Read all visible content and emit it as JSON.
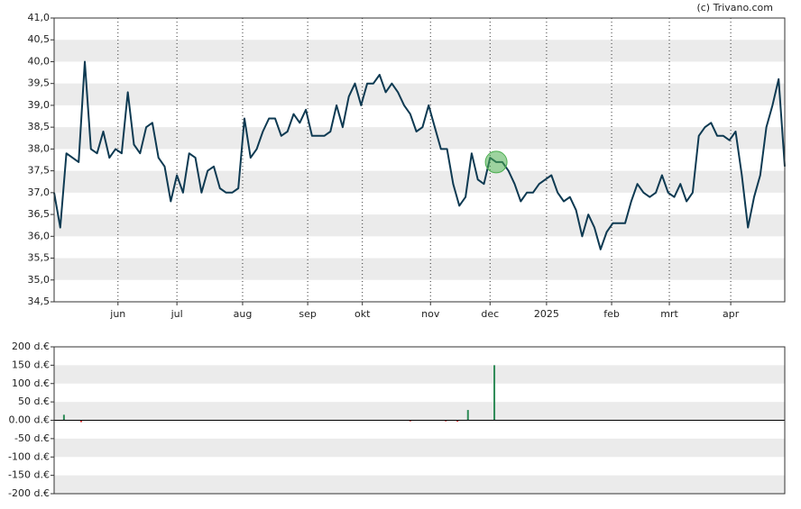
{
  "credit": "(c) Trivano.com",
  "chart_data": [
    {
      "type": "line",
      "color": "#0e3a52",
      "band_color": "#ebebeb",
      "highlight_index": 72,
      "highlight_color": "#4caf50",
      "values": [
        37.0,
        36.2,
        37.9,
        37.8,
        37.7,
        40.0,
        38.0,
        37.9,
        38.4,
        37.8,
        38.0,
        37.9,
        39.3,
        38.1,
        37.9,
        38.5,
        38.6,
        37.8,
        37.6,
        36.8,
        37.4,
        37.0,
        37.9,
        37.8,
        37.0,
        37.5,
        37.6,
        37.1,
        37.0,
        37.0,
        37.1,
        38.7,
        37.8,
        38.0,
        38.4,
        38.7,
        38.7,
        38.3,
        38.4,
        38.8,
        38.6,
        38.9,
        38.3,
        38.3,
        38.3,
        38.4,
        39.0,
        38.5,
        39.2,
        39.5,
        39.0,
        39.5,
        39.5,
        39.7,
        39.3,
        39.5,
        39.3,
        39.0,
        38.8,
        38.4,
        38.5,
        39.0,
        38.5,
        38.0,
        38.0,
        37.2,
        36.7,
        36.9,
        37.9,
        37.3,
        37.2,
        37.8,
        37.7,
        37.7,
        37.5,
        37.2,
        36.8,
        37.0,
        37.0,
        37.2,
        37.3,
        37.4,
        37.0,
        36.8,
        36.9,
        36.6,
        36.0,
        36.5,
        36.2,
        35.7,
        36.1,
        36.3,
        36.3,
        36.3,
        36.8,
        37.2,
        37.0,
        36.9,
        37.0,
        37.4,
        37.0,
        36.9,
        37.2,
        36.8,
        37.0,
        38.3,
        38.5,
        38.6,
        38.3,
        38.3,
        38.2,
        38.4,
        37.4,
        36.2,
        36.9,
        37.4,
        38.5,
        39.0,
        39.6,
        37.6
      ],
      "xlim": [
        0,
        119
      ],
      "xticks": [
        {
          "value": 10.4,
          "label": "jun"
        },
        {
          "value": 20.0,
          "label": "jul"
        },
        {
          "value": 30.7,
          "label": "aug"
        },
        {
          "value": 41.3,
          "label": "sep"
        },
        {
          "value": 50.2,
          "label": "okt"
        },
        {
          "value": 61.3,
          "label": "nov"
        },
        {
          "value": 71.0,
          "label": "dec"
        },
        {
          "value": 80.2,
          "label": "2025"
        },
        {
          "value": 90.8,
          "label": "feb"
        },
        {
          "value": 100.2,
          "label": "mrt"
        },
        {
          "value": 110.2,
          "label": "apr"
        }
      ],
      "ylim": [
        34.5,
        41
      ],
      "yticks": [
        {
          "value": 34.5,
          "label": "34,5"
        },
        {
          "value": 35,
          "label": "35,0"
        },
        {
          "value": 35.5,
          "label": "35,5"
        },
        {
          "value": 36,
          "label": "36,0"
        },
        {
          "value": 36.5,
          "label": "36,5"
        },
        {
          "value": 37,
          "label": "37,0"
        },
        {
          "value": 37.5,
          "label": "37,5"
        },
        {
          "value": 38,
          "label": "38,0"
        },
        {
          "value": 38.5,
          "label": "38,5"
        },
        {
          "value": 39,
          "label": "39,0"
        },
        {
          "value": 39.5,
          "label": "39,5"
        },
        {
          "value": 40,
          "label": "40,0"
        },
        {
          "value": 40.5,
          "label": "40,5"
        },
        {
          "value": 41,
          "label": "41,0"
        }
      ]
    },
    {
      "type": "bar",
      "color": "#2e8b57",
      "negative_color": "#d62728",
      "band_color": "#ebebeb",
      "x": [
        1.6,
        4.4,
        58.0,
        63.8,
        65.7,
        67.4,
        71.7
      ],
      "values": [
        15,
        -5,
        -3,
        -3,
        -4,
        28,
        150
      ],
      "xlim": [
        0,
        119
      ],
      "ylim": [
        -200,
        200
      ],
      "yticks": [
        {
          "value": -200,
          "label": "-200 d.€"
        },
        {
          "value": -150,
          "label": "-150 d.€"
        },
        {
          "value": -100,
          "label": "-100 d.€"
        },
        {
          "value": -50,
          "label": "-50 d.€"
        },
        {
          "value": 0,
          "label": "0.00 d.€"
        },
        {
          "value": 50,
          "label": "50 d.€"
        },
        {
          "value": 100,
          "label": "100 d.€"
        },
        {
          "value": 150,
          "label": "150 d.€"
        },
        {
          "value": 200,
          "label": "200 d.€"
        }
      ]
    }
  ]
}
